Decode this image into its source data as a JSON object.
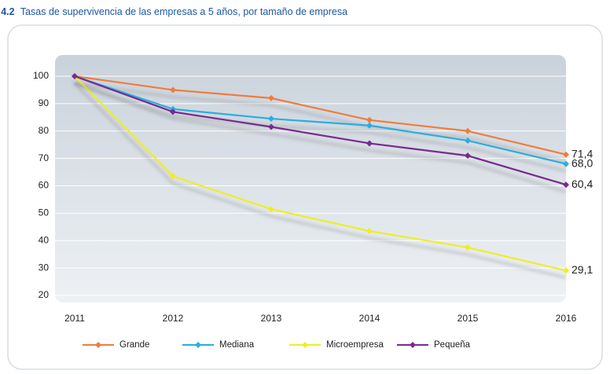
{
  "chart_data": {
    "type": "line",
    "figure_label": "Gráfico 4.2",
    "title": "Tasas de supervivencia de las empresas a 5 años, por tamaño de empresa",
    "categories": [
      "2011",
      "2012",
      "2013",
      "2014",
      "2015",
      "2016"
    ],
    "series": [
      {
        "name": "Grande",
        "color": "#ef7d3c",
        "values": [
          100,
          95,
          92,
          84,
          80,
          71.4
        ],
        "value_labels": [
          null,
          null,
          null,
          null,
          null,
          "71,4"
        ]
      },
      {
        "name": "Mediana",
        "color": "#29aee0",
        "values": [
          100,
          88,
          84.5,
          82,
          76.5,
          68.0
        ],
        "value_labels": [
          null,
          null,
          null,
          null,
          null,
          "68,0"
        ]
      },
      {
        "name": "Microempresa",
        "color": "#eeee22",
        "values": [
          100,
          63.5,
          51.5,
          43.5,
          37.5,
          29.1
        ],
        "value_labels": [
          null,
          null,
          null,
          null,
          null,
          "29,1"
        ]
      },
      {
        "name": "Pequeña",
        "color": "#7a2a8e",
        "values": [
          100,
          87,
          81.5,
          75.5,
          71,
          60.4
        ],
        "value_labels": [
          null,
          null,
          null,
          null,
          null,
          "60,4"
        ]
      }
    ],
    "ylim": [
      20,
      100
    ],
    "yticks": [
      20,
      30,
      40,
      50,
      60,
      70,
      80,
      90,
      100
    ],
    "grid": true,
    "legend": "bottom"
  }
}
